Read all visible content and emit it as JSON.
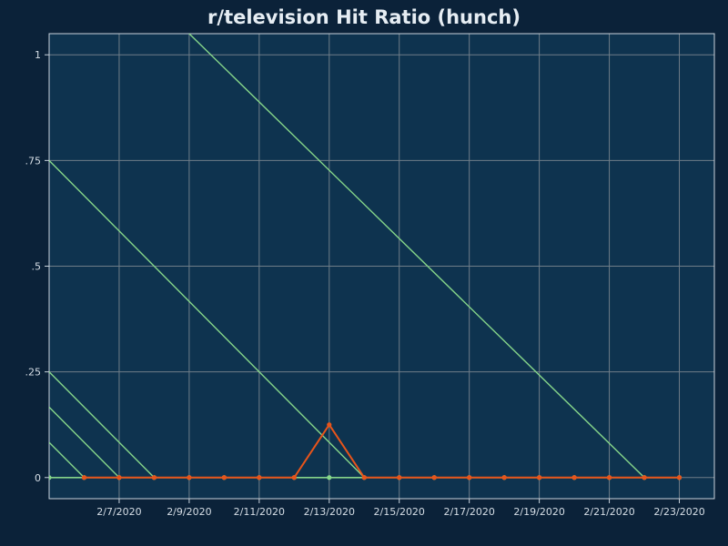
{
  "chart_data": {
    "type": "line",
    "title": "r/television Hit Ratio (hunch)",
    "xlabel": "",
    "ylabel": "",
    "x_tick_labels": [
      "2/7/2020",
      "2/9/2020",
      "2/11/2020",
      "2/13/2020",
      "2/15/2020",
      "2/17/2020",
      "2/19/2020",
      "2/21/2020",
      "2/23/2020"
    ],
    "y_tick_labels": [
      {
        "value": 0,
        "label": "0"
      },
      {
        "value": 0.25,
        "label": ".25"
      },
      {
        "value": 0.5,
        "label": ".5"
      },
      {
        "value": 0.75,
        "label": ".75"
      },
      {
        "value": 1,
        "label": "1"
      }
    ],
    "xlim": [
      "2020-02-05",
      "2020-02-24"
    ],
    "ylim": [
      -0.05,
      1.05
    ],
    "grid": true,
    "background_lines": [
      {
        "points": [
          [
            "2020-02-05",
            0.0833
          ],
          [
            "2020-02-06",
            0
          ]
        ]
      },
      {
        "points": [
          [
            "2020-02-05",
            0.1667
          ],
          [
            "2020-02-07",
            0
          ]
        ]
      },
      {
        "points": [
          [
            "2020-02-05",
            0.25
          ],
          [
            "2020-02-08",
            0
          ]
        ]
      },
      {
        "points": [
          [
            "2020-02-05",
            0.75
          ],
          [
            "2020-02-14",
            0
          ]
        ]
      },
      {
        "points": [
          [
            "2020-02-09",
            1.05
          ],
          [
            "2020-02-22",
            0
          ]
        ]
      }
    ],
    "series": [
      {
        "x": [
          "2020-02-05",
          "2020-02-06",
          "2020-02-07",
          "2020-02-08",
          "2020-02-09",
          "2020-02-10",
          "2020-02-11",
          "2020-02-12",
          "2020-02-13",
          "2020-02-14",
          "2020-02-15",
          "2020-02-16",
          "2020-02-17",
          "2020-02-18",
          "2020-02-19",
          "2020-02-20",
          "2020-02-21",
          "2020-02-22",
          "2020-02-23"
        ],
        "values": [
          0,
          0,
          0,
          0,
          0,
          0,
          0,
          0,
          0,
          0,
          0,
          0,
          0,
          0,
          0,
          0,
          0,
          0,
          0
        ]
      },
      {
        "x": [
          "2020-02-06",
          "2020-02-07",
          "2020-02-08",
          "2020-02-09",
          "2020-02-10",
          "2020-02-11",
          "2020-02-12",
          "2020-02-13",
          "2020-02-14",
          "2020-02-15",
          "2020-02-16",
          "2020-02-17",
          "2020-02-18",
          "2020-02-19",
          "2020-02-20",
          "2020-02-21",
          "2020-02-22",
          "2020-02-23"
        ],
        "values": [
          0,
          0,
          0,
          0,
          0,
          0,
          0,
          0.125,
          0,
          0,
          0,
          0,
          0,
          0,
          0,
          0,
          0,
          0
        ]
      }
    ]
  },
  "colors": {
    "page_background": "#0b2239",
    "plot_background": "#0e334f",
    "grid": "#6f7d88",
    "axis_frame": "#c9d3dc",
    "green": "#86d68a",
    "orange": "#e8541a",
    "text": "#d5dde5",
    "title": "#e6edf3"
  }
}
